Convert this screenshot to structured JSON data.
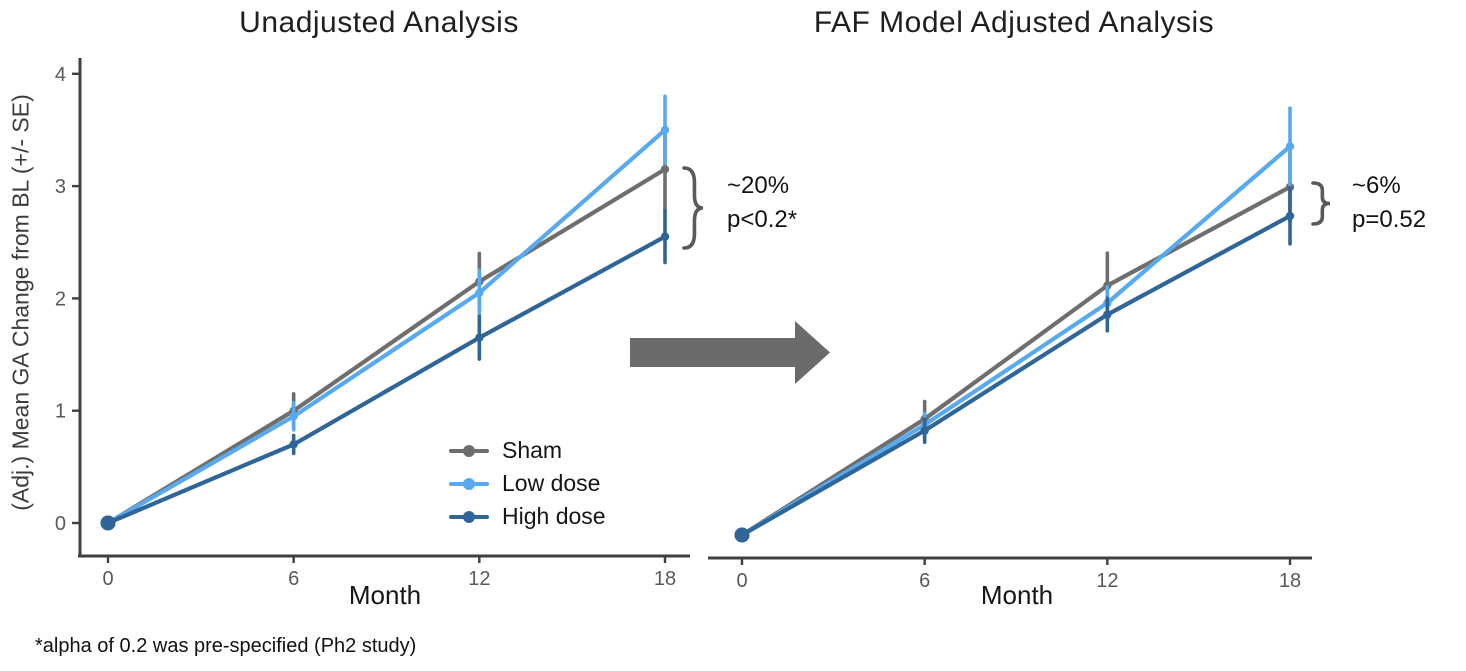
{
  "footnote": "*alpha of 0.2 was pre-specified (Ph2 study)",
  "legend": {
    "position": "inside-bottom-right-of-left-panel",
    "items": [
      "Sham",
      "Low dose",
      "High dose"
    ]
  },
  "arrow_icon": "right-arrow-between-panels",
  "colors": {
    "sham": "#6e6e6e",
    "low_dose": "#58a9ee",
    "high_dose": "#2f6597",
    "axis": "#3f3f3f",
    "tick_text": "#595959",
    "arrow": "#6b6b6b",
    "brace": "#5a5a5a"
  },
  "chart_data": [
    {
      "type": "line",
      "title": "Unadjusted Analysis",
      "xlabel": "Month",
      "ylabel": "(Adj.) Mean GA Change from BL (+/- SE)",
      "x": [
        0,
        6,
        12,
        18
      ],
      "x_tick_labels": [
        "0",
        "6",
        "12",
        "18"
      ],
      "y_tick_labels": [
        "0",
        "1",
        "2",
        "3",
        "4"
      ],
      "xlim": [
        0,
        18
      ],
      "ylim": [
        0,
        4
      ],
      "grid": false,
      "y_axis_visible": true,
      "error_bars": "standard error",
      "series": [
        {
          "name": "Sham",
          "color": "#6e6e6e",
          "values": [
            0,
            1.0,
            2.15,
            3.15
          ],
          "se": [
            0.03,
            0.15,
            0.25,
            0.37
          ]
        },
        {
          "name": "Low dose",
          "color": "#58a9ee",
          "values": [
            0,
            0.95,
            2.05,
            3.5
          ],
          "se": [
            0.03,
            0.12,
            0.2,
            0.3
          ]
        },
        {
          "name": "High dose",
          "color": "#2f6597",
          "values": [
            0,
            0.7,
            1.65,
            2.55
          ],
          "se": [
            0.03,
            0.08,
            0.19,
            0.23
          ]
        }
      ],
      "annotation": {
        "effect": "~20%",
        "p_value": "p<0.2*",
        "refers_to": "Sham vs High dose difference at Month 18"
      }
    },
    {
      "type": "line",
      "title": "FAF Model Adjusted Analysis",
      "xlabel": "Month",
      "ylabel": "",
      "x": [
        0,
        6,
        12,
        18
      ],
      "x_tick_labels": [
        "0",
        "6",
        "12",
        "18"
      ],
      "y_tick_labels": [],
      "xlim": [
        0,
        18
      ],
      "ylim": [
        0,
        4
      ],
      "grid": false,
      "y_axis_visible": false,
      "error_bars": "standard error",
      "series": [
        {
          "name": "Sham",
          "color": "#6e6e6e",
          "values": [
            0,
            1.0,
            2.15,
            3.0
          ],
          "se": [
            0.03,
            0.15,
            0.28,
            0.3
          ]
        },
        {
          "name": "Low dose",
          "color": "#58a9ee",
          "values": [
            0,
            0.95,
            2.0,
            3.35
          ],
          "se": [
            0.03,
            0.1,
            0.14,
            0.33
          ]
        },
        {
          "name": "High dose",
          "color": "#2f6597",
          "values": [
            0,
            0.9,
            1.9,
            2.75
          ],
          "se": [
            0.03,
            0.1,
            0.14,
            0.24
          ]
        }
      ],
      "annotation": {
        "effect": "~6%",
        "p_value": "p=0.52",
        "refers_to": "Sham vs High dose difference at Month 18"
      }
    }
  ]
}
